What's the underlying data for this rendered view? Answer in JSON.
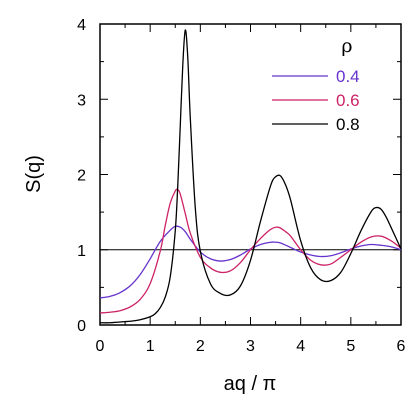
{
  "chart_data": {
    "type": "line",
    "title": "",
    "xlabel": "aq / π",
    "ylabel": "S(q)",
    "xlim": [
      0,
      6
    ],
    "ylim": [
      0,
      4
    ],
    "xticks": [
      0,
      1,
      2,
      3,
      4,
      5,
      6
    ],
    "yticks": [
      0,
      1,
      2,
      3,
      4
    ],
    "grid": false,
    "legend": {
      "title": "ρ",
      "placement": "top-right"
    },
    "reference_line": {
      "y": 1
    },
    "series": [
      {
        "name": "0.4",
        "color": "#6633cc",
        "x": [
          0,
          0.2,
          0.4,
          0.6,
          0.8,
          1.0,
          1.2,
          1.4,
          1.5,
          1.6,
          1.7,
          1.8,
          2.0,
          2.2,
          2.4,
          2.6,
          2.8,
          3.0,
          3.2,
          3.4,
          3.5,
          3.6,
          3.8,
          4.0,
          4.2,
          4.4,
          4.6,
          4.8,
          5.0,
          5.2,
          5.4,
          5.6,
          5.8,
          6.0
        ],
        "y": [
          0.36,
          0.38,
          0.43,
          0.52,
          0.67,
          0.88,
          1.11,
          1.26,
          1.31,
          1.3,
          1.24,
          1.14,
          0.97,
          0.88,
          0.85,
          0.87,
          0.93,
          1.01,
          1.07,
          1.1,
          1.1,
          1.09,
          1.03,
          0.97,
          0.93,
          0.91,
          0.92,
          0.96,
          1.01,
          1.05,
          1.07,
          1.06,
          1.04,
          1.0
        ]
      },
      {
        "name": "0.6",
        "color": "#cc2266",
        "x": [
          0,
          0.2,
          0.4,
          0.6,
          0.8,
          1.0,
          1.2,
          1.3,
          1.4,
          1.5,
          1.55,
          1.6,
          1.7,
          1.8,
          2.0,
          2.2,
          2.4,
          2.6,
          2.8,
          3.0,
          3.2,
          3.4,
          3.55,
          3.7,
          3.8,
          4.0,
          4.2,
          4.4,
          4.6,
          4.8,
          5.0,
          5.2,
          5.4,
          5.6,
          5.8,
          6.0
        ],
        "y": [
          0.16,
          0.17,
          0.19,
          0.24,
          0.34,
          0.55,
          0.98,
          1.32,
          1.62,
          1.78,
          1.8,
          1.74,
          1.48,
          1.22,
          0.9,
          0.76,
          0.7,
          0.72,
          0.83,
          1.0,
          1.15,
          1.27,
          1.3,
          1.24,
          1.18,
          1.0,
          0.86,
          0.8,
          0.81,
          0.9,
          1.0,
          1.1,
          1.17,
          1.18,
          1.12,
          1.02
        ]
      },
      {
        "name": "0.8",
        "color": "#000000",
        "x": [
          0,
          0.2,
          0.4,
          0.6,
          0.8,
          1.0,
          1.1,
          1.2,
          1.3,
          1.4,
          1.5,
          1.55,
          1.6,
          1.65,
          1.7,
          1.75,
          1.8,
          1.9,
          2.0,
          2.2,
          2.4,
          2.6,
          2.8,
          3.0,
          3.2,
          3.4,
          3.5,
          3.6,
          3.7,
          3.8,
          4.0,
          4.2,
          4.4,
          4.6,
          4.8,
          5.0,
          5.2,
          5.4,
          5.5,
          5.6,
          5.7,
          5.8,
          6.0
        ],
        "y": [
          0.03,
          0.03,
          0.04,
          0.05,
          0.07,
          0.11,
          0.15,
          0.23,
          0.37,
          0.64,
          1.25,
          1.85,
          2.65,
          3.45,
          3.92,
          3.55,
          2.75,
          1.55,
          0.98,
          0.55,
          0.42,
          0.4,
          0.52,
          0.86,
          1.38,
          1.85,
          1.97,
          1.98,
          1.86,
          1.66,
          1.12,
          0.76,
          0.6,
          0.59,
          0.7,
          0.95,
          1.25,
          1.5,
          1.56,
          1.54,
          1.44,
          1.3,
          1.01
        ]
      }
    ]
  }
}
